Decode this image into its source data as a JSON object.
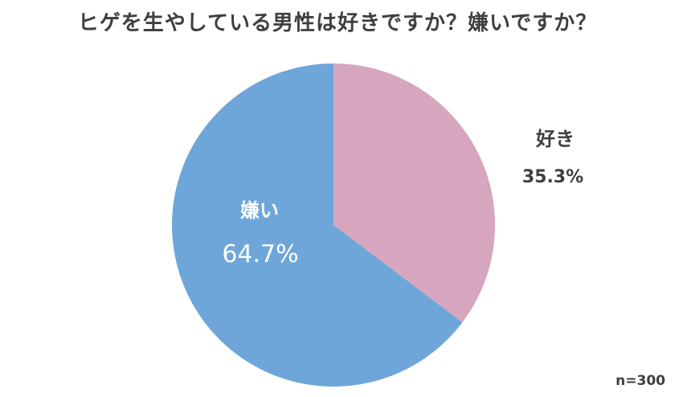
{
  "title": "ヒゲを生やしている男性は好きですか？嫌いですか？",
  "note": "n=300",
  "colors": {
    "like": "#d5a6be",
    "dislike": "#6ea6da",
    "outside_text": "#3f3f3f",
    "inside_text": "#ffffff"
  },
  "chart_data": {
    "type": "pie",
    "title": "ヒゲを生やしている男性は好きですか？嫌いですか？",
    "slices": [
      {
        "label": "好き",
        "value": 35.3,
        "value_label": "35.3%"
      },
      {
        "label": "嫌い",
        "value": 64.7,
        "value_label": "64.7%"
      }
    ],
    "start": "12 o'clock, clockwise"
  }
}
